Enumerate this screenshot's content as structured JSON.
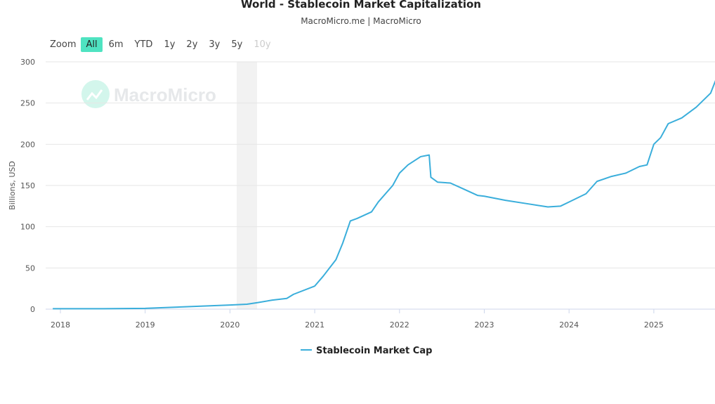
{
  "chart_data": {
    "type": "line",
    "title": "World - Stablecoin Market Capitalization",
    "subtitle": "MacroMicro.me | MacroMicro",
    "ylabel": "Billions, USD",
    "xlabel": "",
    "ylim": [
      0,
      300
    ],
    "yticks": [
      "0",
      "50",
      "100",
      "150",
      "200",
      "250",
      "300"
    ],
    "xticks": [
      "2018",
      "2019",
      "2020",
      "2021",
      "2022",
      "2023",
      "2024",
      "2025"
    ],
    "grid": true,
    "legend_position": "bottom",
    "shaded_band": [
      2020.08,
      2020.32
    ],
    "series": [
      {
        "name": "Stablecoin Market Cap",
        "color": "#3aaedb",
        "x": [
          2017.91,
          2018.5,
          2019.0,
          2019.5,
          2020.0,
          2020.2,
          2020.33,
          2020.5,
          2020.67,
          2020.75,
          2021.0,
          2021.1,
          2021.25,
          2021.33,
          2021.42,
          2021.5,
          2021.67,
          2021.75,
          2021.92,
          2022.0,
          2022.1,
          2022.25,
          2022.35,
          2022.37,
          2022.45,
          2022.6,
          2022.75,
          2022.92,
          2023.0,
          2023.25,
          2023.5,
          2023.75,
          2023.9,
          2024.0,
          2024.2,
          2024.33,
          2024.5,
          2024.67,
          2024.83,
          2024.92,
          2025.0,
          2025.08,
          2025.17,
          2025.33,
          2025.5,
          2025.67,
          2025.75
        ],
        "y": [
          0.5,
          0.5,
          1,
          3,
          5,
          6,
          8,
          11,
          13,
          18,
          28,
          40,
          60,
          80,
          107,
          110,
          118,
          130,
          150,
          165,
          175,
          185,
          187,
          160,
          154,
          153,
          146,
          138,
          137,
          132,
          128,
          124,
          125,
          130,
          140,
          155,
          161,
          165,
          173,
          175,
          200,
          208,
          225,
          232,
          245,
          262,
          283
        ]
      }
    ]
  },
  "range_selector": {
    "label": "Zoom",
    "buttons": [
      "All",
      "6m",
      "YTD",
      "1y",
      "2y",
      "3y",
      "5y",
      "10y"
    ],
    "active": "All",
    "disabled": [
      "10y"
    ]
  },
  "watermark": "MacroMicro"
}
